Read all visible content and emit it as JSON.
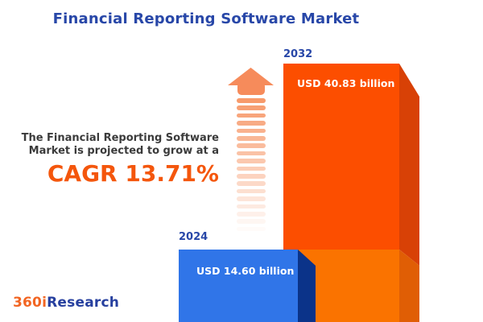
{
  "chart_data": {
    "type": "bar",
    "title": "Financial Reporting Software Market",
    "categories": [
      "2024",
      "2032"
    ],
    "series": [
      {
        "name": "Market size (USD billion)",
        "values": [
          14.6,
          40.83
        ]
      }
    ],
    "value_labels": [
      "USD 14.60 billion",
      "USD 40.83 billion"
    ],
    "unit": "USD billion",
    "cagr_percent": 13.71,
    "bar_colors": [
      "#3075E8",
      "#FC4E00"
    ],
    "legend_position": "none",
    "axes": "none",
    "grid": false
  },
  "annotation": {
    "line1": "The Financial Reporting Software",
    "line2": "Market is projected to grow at a",
    "cagr_label": "CAGR 13.71%"
  },
  "logo": {
    "prefix": "360i",
    "suffix": "Research"
  },
  "colors": {
    "title_blue": "#2847A8",
    "cagr_orange": "#F4560C",
    "bar_2032_front_growth": "#FC4E00",
    "bar_2032_front_base": "#FA7300",
    "bar_2032_side_growth": "#D84106",
    "bar_2032_side_base": "#E05E05",
    "bar_2024_front": "#3075E8",
    "bar_2024_side": "#0B3389",
    "arrow_orange": "#F68B5B",
    "logo_orange": "#F26522",
    "logo_blue": "#27409F",
    "annotation_text": "#3B3B3B"
  }
}
